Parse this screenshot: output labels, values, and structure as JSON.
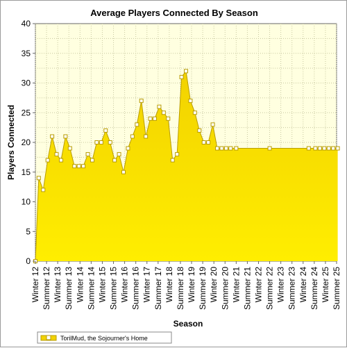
{
  "chart_data": {
    "type": "area",
    "title": "Average Players Connected By Season",
    "xlabel": "Season",
    "ylabel": "Players Connected",
    "ylim": [
      0,
      40
    ],
    "y_ticks": [
      0,
      5,
      10,
      15,
      20,
      25,
      30,
      35,
      40
    ],
    "x_tick_labels": [
      "Winter 12",
      "Summer 12",
      "Winter 13",
      "Summer 13",
      "Winter 14",
      "Summer 14",
      "Winter 15",
      "Summer 15",
      "Winter 16",
      "Summer 16",
      "Winter 17",
      "Summer 17",
      "Winter 18",
      "Summer 18",
      "Winter 19",
      "Summer 19",
      "Winter 20",
      "Summer 20",
      "Winter 21",
      "Summer 21",
      "Winter 22",
      "Summer 22",
      "Winter 23",
      "Summer 23",
      "Winter 24",
      "Summer 24",
      "Winter 25",
      "Summer 25"
    ],
    "grid": true,
    "legend_position": "bottom-left",
    "colors": {
      "fill_top": "#f2d200",
      "fill_bottom": "#ffee00",
      "line": "#b89c00",
      "plot_bg": "#ffffe0",
      "grid": "#c8c8a0"
    },
    "series": [
      {
        "name": "TorilMud, the Sojourner's Home",
        "x": [
          0.0,
          0.3,
          0.7,
          1.1,
          1.5,
          1.9,
          2.3,
          2.7,
          3.1,
          3.5,
          3.9,
          4.3,
          4.7,
          5.1,
          5.5,
          5.9,
          6.3,
          6.7,
          7.1,
          7.5,
          7.9,
          8.3,
          8.7,
          9.1,
          9.5,
          9.9,
          10.3,
          10.7,
          11.1,
          11.5,
          11.9,
          12.3,
          12.7,
          13.1,
          13.5,
          13.9,
          14.3,
          14.7,
          15.1,
          15.5,
          15.9,
          16.3,
          16.7,
          17.1,
          17.5,
          18.0,
          21.0,
          24.5,
          25.1,
          25.5,
          25.9,
          26.3,
          26.7,
          27.1
        ],
        "values": [
          0,
          14,
          12,
          17,
          21,
          18,
          17,
          21,
          19,
          16,
          16,
          16,
          18,
          17,
          20,
          20,
          22,
          20,
          17,
          18,
          15,
          19,
          21,
          23,
          27,
          21,
          24,
          24,
          26,
          25,
          24,
          17,
          18,
          31,
          32,
          27,
          25,
          22,
          20,
          20,
          23,
          19,
          19,
          19,
          19,
          19,
          19,
          19,
          19,
          19,
          19,
          19,
          19,
          19
        ]
      }
    ]
  }
}
